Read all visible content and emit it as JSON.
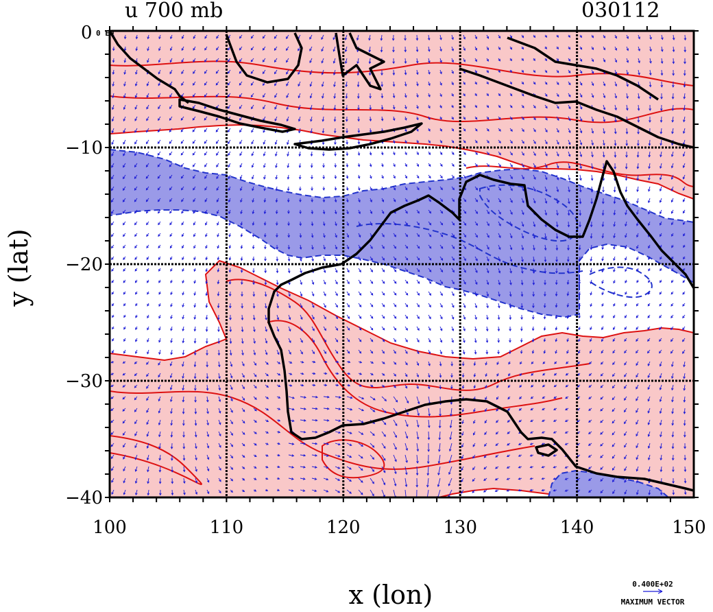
{
  "header": {
    "title": "u 700 mb",
    "date_code": "030112",
    "corner_tag": "0 E0"
  },
  "axes": {
    "xlabel": "x (lon)",
    "ylabel": "y (lat)",
    "x_ticks": [
      "100",
      "110",
      "120",
      "130",
      "140",
      "150"
    ],
    "x_values": [
      100,
      110,
      120,
      130,
      140,
      150
    ],
    "y_ticks": [
      "−10",
      "−20",
      "−30",
      "−40"
    ],
    "y_values": [
      -10,
      -20,
      -30,
      -40
    ],
    "xlim": [
      100,
      150
    ],
    "ylim": [
      -40,
      0
    ]
  },
  "vector_key": {
    "magnitude": "0.400E+02",
    "label": "MAXIMUM VECTOR"
  },
  "colors": {
    "positive_fill": "#f9c8c8",
    "positive_contour": "#dd1111",
    "negative_fill": "#9a9ae8",
    "negative_contour": "#2233cc",
    "coastline": "#000000",
    "vector": "#1a1ad6",
    "grid": "#000000"
  }
}
